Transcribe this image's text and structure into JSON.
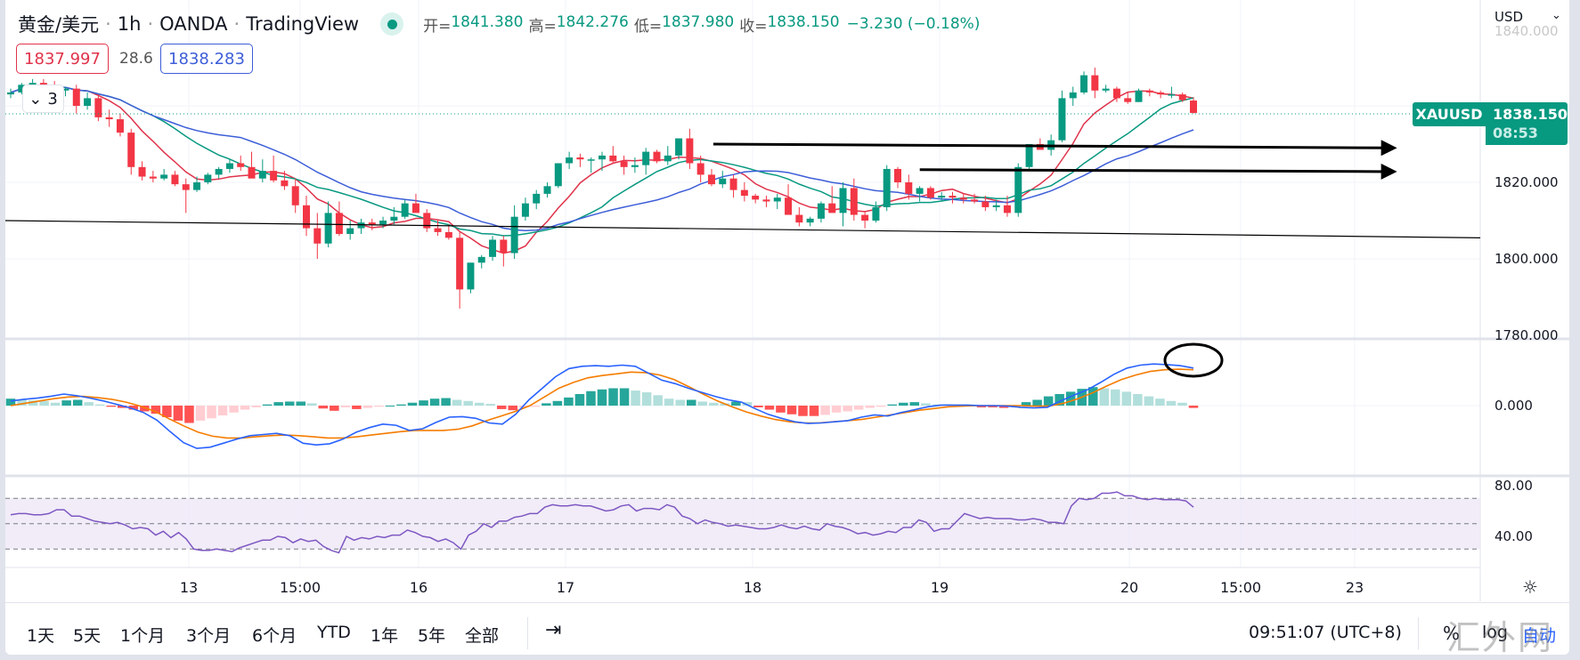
{
  "header": {
    "title": "黄金/美元",
    "sep": "·",
    "interval": "1h",
    "broker": "OANDA",
    "source": "TradingView",
    "ohlc": [
      {
        "label": "开=",
        "value": "1841.380"
      },
      {
        "label": "高=",
        "value": "1842.276"
      },
      {
        "label": "低=",
        "value": "1837.980"
      },
      {
        "label": "收=",
        "value": "1838.150"
      }
    ],
    "change": "−3.230 (−0.18%)"
  },
  "quote": {
    "sell": "1837.997",
    "spread": "28.6",
    "buy": "1838.283"
  },
  "indicators_collapse": {
    "icon": "chevron-down-icon",
    "count": "3"
  },
  "price_axis": {
    "currency": "USD",
    "ticks": [
      "1840.000",
      "1820.000",
      "1800.000",
      "1780.000"
    ],
    "symbol_tag": "XAUUSD",
    "last_price": "1838.150",
    "countdown": "08:53"
  },
  "macd_axis": {
    "ticks": [
      "0.000"
    ]
  },
  "rsi_axis": {
    "ticks": [
      "80.00",
      "40.00"
    ]
  },
  "time_axis": {
    "ticks": [
      "13",
      "15:00",
      "16",
      "17",
      "18",
      "19",
      "20",
      "15:00",
      "23"
    ]
  },
  "toolbar": {
    "ranges": [
      "1天",
      "5天",
      "1个月",
      "3个月",
      "6个月",
      "YTD",
      "1年",
      "5年",
      "全部"
    ],
    "goto_icon": "calendar-goto-icon",
    "clock": "09:51:07 (UTC+8)",
    "percent": "%",
    "log": "log",
    "auto": "自动"
  },
  "watermark": "汇外网",
  "colors": {
    "up": "#089981",
    "down": "#f23645",
    "ma_fast": "#e0334b",
    "ma_mid": "#089981",
    "ma_slow": "#3d5ed8",
    "macd": "#2962ff",
    "signal": "#f57c00",
    "rsi": "#7e57c2"
  },
  "chart_data": [
    {
      "type": "candlestick",
      "title": "黄金/美元 · 1h · OANDA",
      "ylabel": "USD",
      "ylim": [
        1778,
        1848
      ],
      "x_ticks": [
        "13",
        "15:00",
        "16",
        "17",
        "18",
        "19",
        "20",
        "15:00",
        "23"
      ],
      "last": {
        "open": 1841.38,
        "high": 1842.276,
        "low": 1837.98,
        "close": 1838.15
      },
      "candles": [
        [
          1843.0,
          1844.5,
          1842.0,
          1843.5
        ],
        [
          1843.5,
          1846.0,
          1843.0,
          1845.5
        ],
        [
          1845.5,
          1847.0,
          1844.5,
          1846.0
        ],
        [
          1846.0,
          1847.0,
          1845.0,
          1845.5
        ],
        [
          1845.5,
          1846.5,
          1843.0,
          1844.0
        ],
        [
          1844.0,
          1845.0,
          1842.5,
          1844.5
        ],
        [
          1844.5,
          1845.5,
          1838.0,
          1840.0
        ],
        [
          1840.0,
          1843.5,
          1839.0,
          1842.0
        ],
        [
          1842.0,
          1843.0,
          1836.0,
          1837.0
        ],
        [
          1837.0,
          1839.0,
          1834.5,
          1836.5
        ],
        [
          1836.5,
          1838.0,
          1832.0,
          1833.0
        ],
        [
          1833.0,
          1834.0,
          1822.0,
          1824.0
        ],
        [
          1824.0,
          1825.5,
          1820.5,
          1821.5
        ],
        [
          1821.5,
          1823.0,
          1820.0,
          1821.0
        ],
        [
          1821.0,
          1823.5,
          1820.5,
          1822.0
        ],
        [
          1822.0,
          1823.0,
          1819.0,
          1819.5
        ],
        [
          1819.5,
          1821.0,
          1812.0,
          1818.0
        ],
        [
          1818.0,
          1821.5,
          1817.5,
          1820.0
        ],
        [
          1820.0,
          1822.5,
          1819.5,
          1822.0
        ],
        [
          1822.0,
          1824.0,
          1821.0,
          1823.5
        ],
        [
          1823.5,
          1826.0,
          1822.5,
          1825.0
        ],
        [
          1825.0,
          1827.0,
          1823.0,
          1824.0
        ],
        [
          1824.0,
          1828.0,
          1822.5,
          1821.0
        ],
        [
          1821.0,
          1826.0,
          1820.0,
          1823.0
        ],
        [
          1823.0,
          1827.0,
          1820.0,
          1820.5
        ],
        [
          1820.5,
          1823.0,
          1818.0,
          1819.0
        ],
        [
          1819.0,
          1821.0,
          1812.0,
          1814.0
        ],
        [
          1814.0,
          1816.5,
          1806.0,
          1808.0
        ],
        [
          1808.0,
          1812.0,
          1800.0,
          1804.0
        ],
        [
          1804.0,
          1815.0,
          1803.0,
          1812.0
        ],
        [
          1812.0,
          1815.0,
          1806.0,
          1806.5
        ],
        [
          1806.5,
          1810.0,
          1805.0,
          1808.0
        ],
        [
          1808.0,
          1810.5,
          1806.5,
          1809.5
        ],
        [
          1809.5,
          1810.5,
          1807.5,
          1809.0
        ],
        [
          1809.0,
          1811.0,
          1808.0,
          1810.0
        ],
        [
          1810.0,
          1813.5,
          1809.0,
          1811.0
        ],
        [
          1811.0,
          1815.5,
          1810.5,
          1814.5
        ],
        [
          1814.5,
          1817.0,
          1812.5,
          1812.0
        ],
        [
          1812.0,
          1813.0,
          1807.0,
          1808.0
        ],
        [
          1808.0,
          1810.0,
          1806.0,
          1807.0
        ],
        [
          1807.0,
          1809.0,
          1805.0,
          1805.5
        ],
        [
          1805.5,
          1807.0,
          1787.0,
          1792.0
        ],
        [
          1792.0,
          1799.0,
          1791.0,
          1799.0
        ],
        [
          1799.0,
          1801.0,
          1797.5,
          1800.5
        ],
        [
          1800.5,
          1806.0,
          1799.5,
          1805.0
        ],
        [
          1805.0,
          1806.0,
          1798.0,
          1801.5
        ],
        [
          1801.5,
          1814.0,
          1800.0,
          1811.0
        ],
        [
          1811.0,
          1816.0,
          1810.0,
          1814.5
        ],
        [
          1814.5,
          1818.0,
          1813.0,
          1817.0
        ],
        [
          1817.0,
          1820.0,
          1816.0,
          1819.0
        ],
        [
          1819.0,
          1825.0,
          1818.5,
          1825.0
        ],
        [
          1825.0,
          1828.0,
          1823.5,
          1826.5
        ],
        [
          1826.5,
          1827.5,
          1824.0,
          1826.0
        ],
        [
          1826.0,
          1826.5,
          1822.5,
          1826.0
        ],
        [
          1826.0,
          1828.0,
          1823.0,
          1827.0
        ],
        [
          1827.0,
          1829.5,
          1825.0,
          1825.5
        ],
        [
          1825.5,
          1827.0,
          1822.0,
          1824.0
        ],
        [
          1824.0,
          1826.5,
          1822.5,
          1824.5
        ],
        [
          1824.5,
          1829.0,
          1822.0,
          1828.0
        ],
        [
          1828.0,
          1828.5,
          1825.0,
          1825.5
        ],
        [
          1825.5,
          1829.5,
          1824.5,
          1827.0
        ],
        [
          1827.0,
          1831.0,
          1826.0,
          1831.5
        ],
        [
          1831.5,
          1834.0,
          1823.5,
          1825.0
        ],
        [
          1825.0,
          1827.0,
          1820.0,
          1822.0
        ],
        [
          1822.0,
          1823.5,
          1819.0,
          1819.5
        ],
        [
          1819.5,
          1823.0,
          1818.5,
          1821.0
        ],
        [
          1821.0,
          1822.0,
          1816.0,
          1818.0
        ],
        [
          1818.0,
          1820.0,
          1815.0,
          1816.5
        ],
        [
          1816.5,
          1817.0,
          1814.5,
          1815.5
        ],
        [
          1815.5,
          1816.5,
          1813.5,
          1815.0
        ],
        [
          1815.0,
          1817.0,
          1813.0,
          1816.0
        ],
        [
          1816.0,
          1819.5,
          1812.0,
          1811.5
        ],
        [
          1811.5,
          1813.5,
          1808.5,
          1809.5
        ],
        [
          1809.5,
          1811.0,
          1808.5,
          1810.5
        ],
        [
          1810.5,
          1815.0,
          1809.5,
          1814.5
        ],
        [
          1814.5,
          1819.0,
          1813.5,
          1812.0
        ],
        [
          1812.0,
          1820.0,
          1808.5,
          1818.5
        ],
        [
          1818.5,
          1821.0,
          1810.0,
          1811.5
        ],
        [
          1811.5,
          1812.5,
          1808.0,
          1810.0
        ],
        [
          1810.0,
          1815.0,
          1809.5,
          1813.5
        ],
        [
          1813.5,
          1824.5,
          1812.5,
          1823.5
        ],
        [
          1823.5,
          1824.0,
          1818.5,
          1820.0
        ],
        [
          1820.0,
          1822.0,
          1815.5,
          1817.0
        ],
        [
          1817.0,
          1819.0,
          1815.0,
          1818.5
        ],
        [
          1818.5,
          1819.0,
          1815.5,
          1816.0
        ],
        [
          1816.0,
          1817.5,
          1815.0,
          1816.5
        ],
        [
          1816.5,
          1817.5,
          1814.5,
          1816.0
        ],
        [
          1816.0,
          1817.0,
          1814.5,
          1815.5
        ],
        [
          1815.5,
          1817.0,
          1814.5,
          1815.0
        ],
        [
          1815.0,
          1816.5,
          1812.5,
          1813.5
        ],
        [
          1813.5,
          1815.5,
          1812.5,
          1814.0
        ],
        [
          1814.0,
          1816.5,
          1811.0,
          1812.0
        ],
        [
          1812.0,
          1825.0,
          1811.0,
          1824.0
        ],
        [
          1824.0,
          1830.0,
          1823.0,
          1830.0
        ],
        [
          1830.0,
          1831.5,
          1828.5,
          1828.5
        ],
        [
          1828.5,
          1832.5,
          1827.0,
          1831.0
        ],
        [
          1831.0,
          1844.0,
          1830.5,
          1842.0
        ],
        [
          1842.0,
          1845.0,
          1840.0,
          1843.5
        ],
        [
          1843.5,
          1849.0,
          1843.0,
          1848.0
        ],
        [
          1848.0,
          1850.0,
          1842.0,
          1844.0
        ],
        [
          1844.0,
          1845.5,
          1843.5,
          1844.5
        ],
        [
          1844.5,
          1845.0,
          1841.0,
          1842.0
        ],
        [
          1842.0,
          1843.5,
          1840.5,
          1841.0
        ],
        [
          1841.0,
          1844.5,
          1841.0,
          1844.0
        ],
        [
          1844.0,
          1844.5,
          1842.5,
          1843.5
        ],
        [
          1843.5,
          1844.0,
          1842.0,
          1843.0
        ],
        [
          1843.0,
          1845.0,
          1842.0,
          1843.0
        ],
        [
          1843.0,
          1843.5,
          1841.0,
          1841.5
        ],
        [
          1841.38,
          1842.276,
          1837.98,
          1838.15
        ]
      ],
      "moving_averages": [
        {
          "name": "MA fast",
          "color": "#e0334b"
        },
        {
          "name": "MA mid",
          "color": "#089981"
        },
        {
          "name": "MA slow",
          "color": "#3d5ed8"
        }
      ],
      "trendlines": [
        {
          "name": "lower support",
          "from": [
            0,
            1810.0
          ],
          "to": [
            1,
            1805.5
          ],
          "arrow": false
        },
        {
          "name": "upper resistance arrow",
          "from": [
            0.48,
            1830.0
          ],
          "to": [
            0.94,
            1829.0
          ],
          "arrow": true
        },
        {
          "name": "lower resistance arrow",
          "from": [
            0.62,
            1823.3
          ],
          "to": [
            0.94,
            1822.8
          ],
          "arrow": true
        }
      ]
    },
    {
      "type": "bar+line",
      "title": "MACD",
      "ytick_labels": [
        "0.000"
      ],
      "histogram": [
        1.2,
        1.0,
        0.9,
        0.8,
        0.5,
        0.9,
        1.0,
        0.6,
        0.2,
        -0.2,
        -0.4,
        -0.7,
        -1.0,
        -1.4,
        -2.0,
        -2.6,
        -3.0,
        -2.6,
        -2.2,
        -1.7,
        -1.2,
        -0.7,
        -0.3,
        0.2,
        0.6,
        0.7,
        0.7,
        0.4,
        -0.5,
        -0.9,
        -0.3,
        -0.6,
        -0.4,
        -0.2,
        0.0,
        0.2,
        0.5,
        0.9,
        1.2,
        1.3,
        1.0,
        0.8,
        0.5,
        0.3,
        -0.6,
        -0.8,
        -0.3,
        -0.2,
        0.4,
        0.8,
        1.4,
        2.0,
        2.5,
        2.8,
        3.0,
        3.0,
        2.6,
        2.3,
        1.8,
        1.2,
        1.0,
        1.0,
        0.7,
        0.5,
        0.4,
        0.7,
        0.6,
        -0.3,
        -0.7,
        -1.2,
        -1.5,
        -1.8,
        -1.8,
        -1.6,
        -1.2,
        -1.0,
        -0.7,
        -0.4,
        -0.2,
        0.2,
        0.5,
        0.6,
        0.4,
        0.2,
        0.2,
        0.1,
        0.0,
        -0.3,
        -0.3,
        -0.4,
        -0.3,
        0.6,
        1.0,
        1.6,
        2.0,
        2.4,
        2.9,
        3.2,
        3.0,
        2.8,
        2.4,
        2.0,
        1.6,
        1.2,
        0.8,
        0.5,
        -0.4
      ],
      "macd": [
        0.8,
        1.1,
        1.3,
        1.6,
        2.0,
        1.7,
        1.3,
        0.8,
        0.2,
        -0.4,
        -1.2,
        -2.5,
        -4.5,
        -6.4,
        -7.4,
        -7.2,
        -6.5,
        -5.8,
        -5.2,
        -5.0,
        -4.8,
        -5.2,
        -6.5,
        -6.8,
        -6.6,
        -5.8,
        -4.6,
        -3.8,
        -3.2,
        -3.4,
        -4.3,
        -4.0,
        -2.9,
        -2.0,
        -1.9,
        -2.2,
        -3.0,
        -3.2,
        -1.5,
        1.0,
        3.0,
        5.0,
        6.4,
        6.8,
        6.9,
        6.8,
        7.0,
        6.8,
        5.6,
        4.4,
        3.8,
        3.0,
        2.3,
        1.6,
        1.0,
        0.6,
        -0.5,
        -1.5,
        -2.2,
        -2.8,
        -3.1,
        -3.0,
        -2.8,
        -2.6,
        -2.0,
        -1.6,
        -1.8,
        -1.2,
        -0.7,
        -0.2,
        0.1,
        0.1,
        0.1,
        0.0,
        0.0,
        -0.1,
        -0.3,
        -0.4,
        -0.3,
        0.8,
        1.8,
        2.7,
        4.0,
        5.4,
        6.5,
        7.0,
        7.2,
        7.1,
        6.9,
        6.5
      ],
      "signal": [
        0.0,
        0.4,
        0.8,
        1.2,
        1.5,
        1.6,
        1.4,
        1.1,
        0.6,
        -0.1,
        -1.0,
        -2.3,
        -3.5,
        -4.6,
        -5.3,
        -5.6,
        -5.6,
        -5.4,
        -5.2,
        -5.1,
        -5.2,
        -5.4,
        -5.6,
        -5.6,
        -5.4,
        -5.1,
        -4.8,
        -4.5,
        -4.3,
        -4.3,
        -4.3,
        -4.1,
        -3.5,
        -2.6,
        -1.8,
        -1.0,
        0.0,
        1.5,
        3.0,
        4.0,
        4.8,
        5.2,
        5.5,
        5.8,
        5.7,
        5.3,
        4.5,
        3.3,
        2.0,
        0.8,
        -0.2,
        -1.1,
        -1.8,
        -2.4,
        -2.8,
        -3.0,
        -3.0,
        -2.8,
        -2.6,
        -2.4,
        -2.0,
        -1.6,
        -1.2,
        -0.8,
        -0.5,
        -0.2,
        -0.1,
        0.0,
        0.0,
        0.0,
        0.0,
        -0.1,
        -0.1,
        0.4,
        1.2,
        2.2,
        3.4,
        4.5,
        5.3,
        5.9,
        6.2,
        6.3,
        6.2
      ]
    },
    {
      "type": "line",
      "title": "RSI",
      "ytick_labels": [
        "80.00",
        "40.00"
      ],
      "ylim": [
        20,
        90
      ],
      "bands": {
        "upper": 70,
        "middle": 50,
        "lower": 30
      },
      "values": [
        57,
        58,
        58,
        57,
        57,
        58,
        61,
        61,
        56,
        56,
        54,
        52,
        51,
        50,
        51,
        49,
        46,
        47,
        46,
        41,
        44,
        39,
        43,
        38,
        30,
        29,
        29,
        30,
        29,
        28,
        31,
        33,
        35,
        37,
        37,
        40,
        39,
        35,
        38,
        36,
        37,
        32,
        29,
        27,
        40,
        37,
        39,
        38,
        40,
        39,
        41,
        41,
        45,
        43,
        40,
        39,
        36,
        38,
        35,
        30,
        41,
        44,
        50,
        47,
        52,
        52,
        55,
        56,
        58,
        58,
        63,
        65,
        64,
        64,
        65,
        64,
        64,
        62,
        60,
        61,
        64,
        65,
        60,
        62,
        62,
        61,
        65,
        63,
        56,
        54,
        50,
        53,
        51,
        50,
        48,
        49,
        48,
        47,
        46,
        46,
        47,
        49,
        47,
        46,
        48,
        46,
        45,
        50,
        48,
        47,
        45,
        42,
        43,
        41,
        42,
        44,
        43,
        47,
        47,
        53,
        51,
        44,
        46,
        46,
        52,
        58,
        56,
        54,
        55,
        54,
        54,
        54,
        53,
        53,
        54,
        53,
        51,
        51,
        50,
        64,
        70,
        69,
        70,
        74,
        74,
        75,
        72,
        72,
        70,
        69,
        70,
        69,
        69,
        69,
        68,
        63
      ],
      "last": 63
    }
  ]
}
